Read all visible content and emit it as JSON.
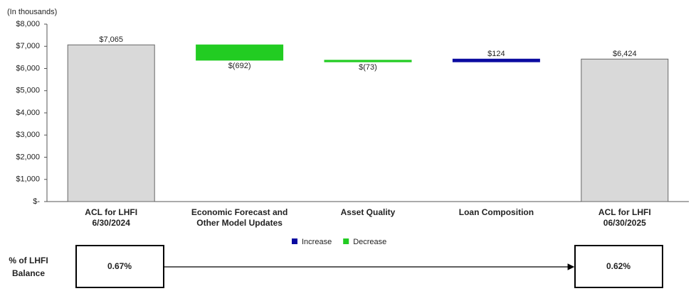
{
  "chart_data": {
    "type": "waterfall",
    "axis_note": "(In thousands)",
    "categories": [
      [
        "ACL for LHFI",
        "6/30/2024"
      ],
      [
        "Economic Forecast and",
        "Other Model Updates"
      ],
      [
        "Asset Quality"
      ],
      [
        "Loan Composition"
      ],
      [
        "ACL for LHFI",
        "06/30/2025"
      ]
    ],
    "measures": [
      "absolute",
      "relative",
      "relative",
      "relative",
      "absolute"
    ],
    "values": [
      7065,
      -692,
      -73,
      124,
      6424
    ],
    "value_labels": [
      "$7,065",
      "$(692)",
      "$(73)",
      "$124",
      "$6,424"
    ],
    "total_color": "#d9d9d9",
    "legend": [
      {
        "name": "Increase",
        "color": "#0a0aa0"
      },
      {
        "name": "Decrease",
        "color": "#22cc22"
      }
    ],
    "ylim": [
      0,
      8000
    ],
    "yticks": [
      {
        "value": 0,
        "label": "$-"
      },
      {
        "value": 1000,
        "label": "$1,000"
      },
      {
        "value": 2000,
        "label": "$2,000"
      },
      {
        "value": 3000,
        "label": "$3,000"
      },
      {
        "value": 4000,
        "label": "$4,000"
      },
      {
        "value": 5000,
        "label": "$5,000"
      },
      {
        "value": 6000,
        "label": "$6,000"
      },
      {
        "value": 7000,
        "label": "$7,000"
      },
      {
        "value": 8000,
        "label": "$8,000"
      }
    ]
  },
  "balance": {
    "label": [
      "% of LHFI",
      "Balance"
    ],
    "start": "0.67%",
    "end": "0.62%"
  }
}
